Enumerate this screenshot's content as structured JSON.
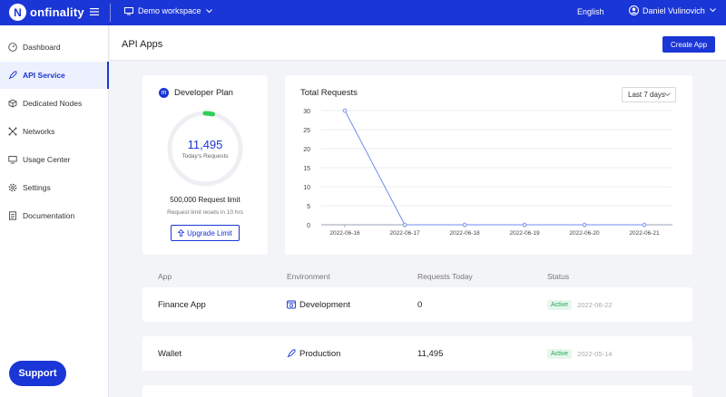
{
  "app": {
    "logo_text": "onfinality",
    "logo_letter": "N"
  },
  "topbar": {
    "workspace": "Demo workspace",
    "language": "English",
    "user_name": "Daniel Vulinovich"
  },
  "sidebar": {
    "items": [
      {
        "label": "Dashboard",
        "icon": "dashboard-gauge-icon"
      },
      {
        "label": "API Service",
        "icon": "api-rocket-icon",
        "active": true
      },
      {
        "label": "Dedicated Nodes",
        "icon": "cube-icon"
      },
      {
        "label": "Networks",
        "icon": "network-icon"
      },
      {
        "label": "Usage Center",
        "icon": "monitor-icon"
      },
      {
        "label": "Settings",
        "icon": "gear-icon"
      },
      {
        "label": "Documentation",
        "icon": "document-icon"
      }
    ],
    "support_label": "Support"
  },
  "header": {
    "title": "API Apps",
    "create_label": "Create App"
  },
  "plan": {
    "title": "Developer Plan",
    "badge_letter": "m",
    "requests_today": "11,495",
    "requests_label": "Today's Requests",
    "limit_text": "500,000 Request limit",
    "reset_text": "Request limit resets in 10 hrs",
    "upgrade_label": "Upgrade Limit",
    "usage_fraction": 0.023,
    "ring_color": "#2fcf5a"
  },
  "chart": {
    "title": "Total Requests",
    "range_label": "Last 7 days",
    "chart_data": {
      "type": "line",
      "x": [
        "2022-06-16",
        "2022-06-17",
        "2022-06-18",
        "2022-06-19",
        "2022-06-20",
        "2022-06-21"
      ],
      "series": [
        {
          "values": [
            30,
            0,
            0,
            0,
            0,
            0
          ],
          "color": "#6f8cf0"
        }
      ],
      "yticks": [
        0,
        5,
        10,
        15,
        20,
        25,
        30
      ],
      "ylim": [
        0,
        30
      ],
      "grid": true
    }
  },
  "table": {
    "headers": {
      "app": "App",
      "environment": "Environment",
      "requests": "Requests Today",
      "status": "Status"
    },
    "rows": [
      {
        "app": "Finance App",
        "environment": "Development",
        "env_icon": "development-icon",
        "requests": "0",
        "status": "Active",
        "date": "2022-06-22"
      },
      {
        "app": "Wallet",
        "environment": "Production",
        "env_icon": "production-rocket-icon",
        "requests": "11,495",
        "status": "Active",
        "date": "2022-05-14"
      }
    ]
  }
}
